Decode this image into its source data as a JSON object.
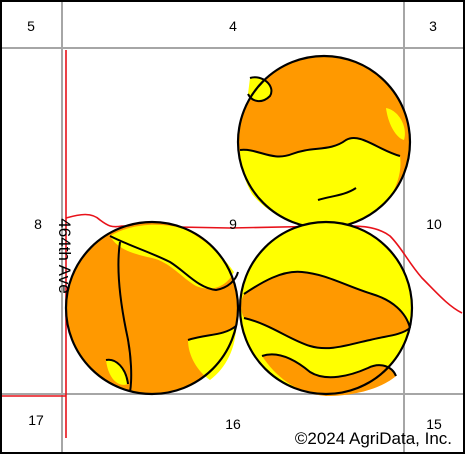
{
  "map": {
    "sections": {
      "s5": "5",
      "s4": "4",
      "s3": "3",
      "s8": "8",
      "s9": "9",
      "s10": "10",
      "s17": "17",
      "s16": "16",
      "s15": "15"
    },
    "road_label": "464th Ave",
    "copyright": "©2024 AgriData, Inc.",
    "colors": {
      "soil_orange": "#FF9900",
      "soil_yellow": "#FFFF00",
      "road_red": "#E8121A",
      "grid_gray": "#A6A6A6",
      "boundary": "#000000"
    }
  }
}
